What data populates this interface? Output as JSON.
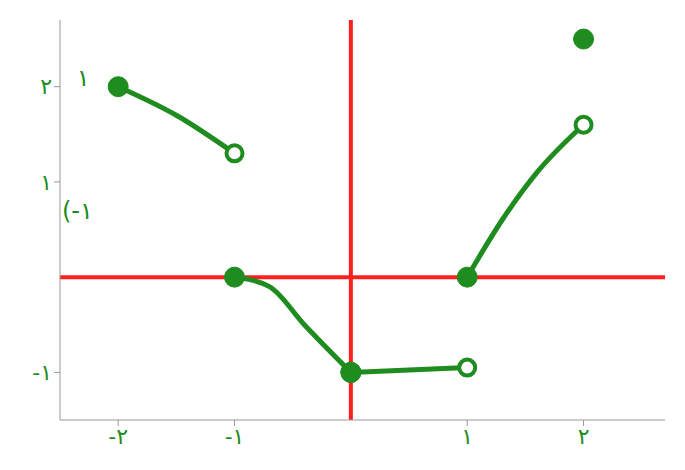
{
  "chart_data": {
    "type": "line",
    "color": "#1e8c1e",
    "xlim": [
      -2.5,
      2.7
    ],
    "ylim": [
      -1.5,
      2.7
    ],
    "xticks": [
      {
        "value": -2,
        "label": "-۲"
      },
      {
        "value": -1,
        "label": "-۱"
      },
      {
        "value": 1,
        "label": "۱"
      },
      {
        "value": 2,
        "label": "۲"
      }
    ],
    "yticks": [
      {
        "value": -1,
        "label": "-۱"
      },
      {
        "value": 1,
        "label": "۱"
      },
      {
        "value": 2,
        "label": "۲"
      }
    ],
    "grid": false,
    "segments": [
      {
        "x": [
          -2,
          -1.5,
          -1
        ],
        "y": [
          2,
          1.7,
          1.3
        ],
        "markers": [
          "filled",
          null,
          "open"
        ]
      },
      {
        "x": [
          -1,
          -0.7,
          -0.4,
          0
        ],
        "y": [
          0,
          -0.1,
          -0.5,
          -1
        ],
        "markers": [
          "filled",
          null,
          null,
          "filled"
        ]
      },
      {
        "x": [
          0,
          1
        ],
        "y": [
          -1,
          -0.95
        ],
        "markers": [
          "filled",
          "open"
        ]
      },
      {
        "x": [
          1,
          1.3,
          1.6,
          2
        ],
        "y": [
          0,
          0.6,
          1.1,
          1.6
        ],
        "markers": [
          "filled",
          null,
          null,
          "open"
        ]
      },
      {
        "x": [
          2
        ],
        "y": [
          2.5
        ],
        "markers": [
          "filled"
        ]
      }
    ],
    "annotations": [
      {
        "text": "۱",
        "x": -2.3,
        "y": 2.1
      },
      {
        "text": "(-۱",
        "x": -2.35,
        "y": 0.7
      }
    ]
  }
}
